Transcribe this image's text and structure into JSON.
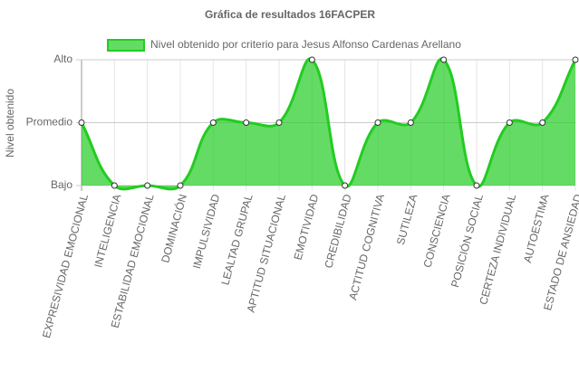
{
  "chart_data": {
    "type": "line",
    "title": "Gráfica de resultados 16FACPER",
    "y_label": "Nivel obtenido",
    "categories": [
      "EXPRESIVIDAD EMOCIONAL",
      "INTELIGENCIA",
      "ESTABILIDAD EMOCIONAL",
      "DOMINACIÓN",
      "IMPULSIVIDAD",
      "LEALTAD GRUPAL",
      "APTITUD SITUACIONAL",
      "EMOTIVIDAD",
      "CREDIBILIDAD",
      "ACTITUD COGNITIVA",
      "SUTILEZA",
      "CONSCIENCIA",
      "POSICIÓN SOCIAL",
      "CERTEZA INDIVIDUAL",
      "AUTOESTIMA",
      "ESTADO DE ANSIEDAD"
    ],
    "series": [
      {
        "name": "Nivel obtenido por criterio para Jesus Alfonso Cardenas Arellano",
        "color": "#22cc22",
        "values": [
          1,
          0,
          0,
          0,
          1,
          1,
          1,
          2,
          0,
          1,
          1,
          2,
          0,
          1,
          1,
          2
        ]
      }
    ],
    "ylim": [
      0,
      2
    ],
    "yticks": [
      {
        "value": 0,
        "label": "Bajo"
      },
      {
        "value": 1,
        "label": "Promedio"
      },
      {
        "value": 2,
        "label": "Alto"
      }
    ],
    "grid": true,
    "fill": true
  }
}
